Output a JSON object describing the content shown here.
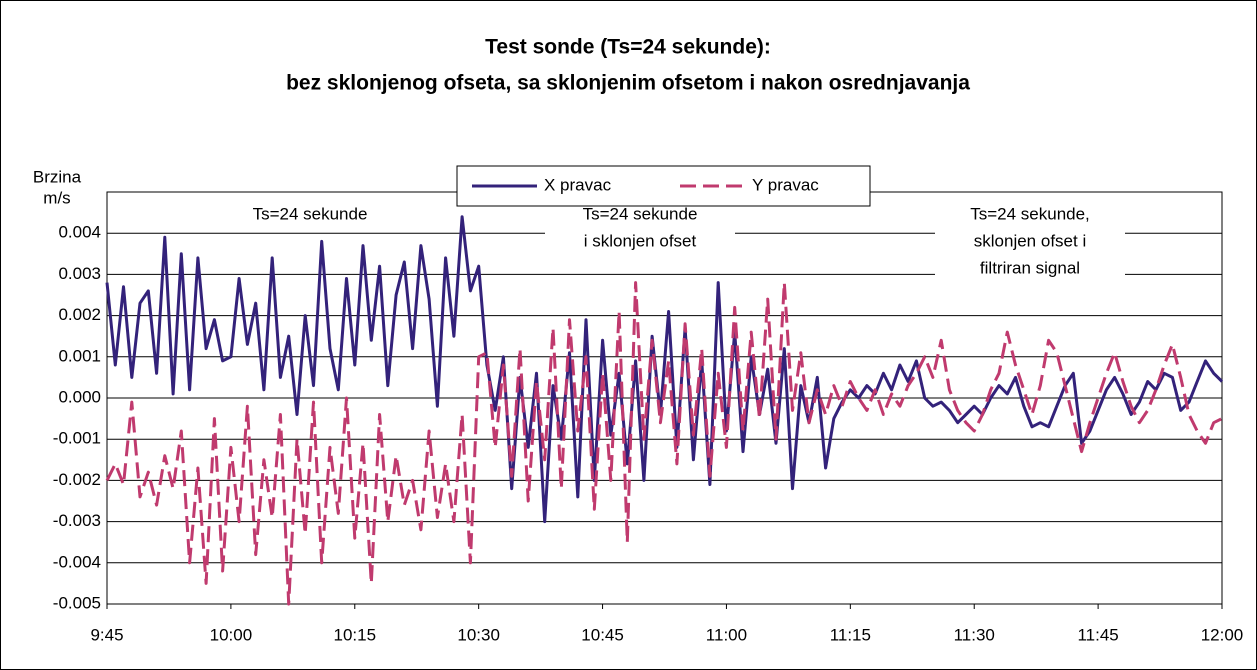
{
  "chart_data": {
    "type": "line",
    "title": [
      "Test sonde (Ts=24 sekunde):",
      "bez sklonjenog ofseta, sa sklonjenim ofsetom i nakon osrednjavanja"
    ],
    "y_label": [
      "Brzina",
      "m/s"
    ],
    "annotations": [
      [
        "Ts=24 sekunde"
      ],
      [
        "Ts=24 sekunde",
        "i sklonjen ofset"
      ],
      [
        "Ts=24 sekunde,",
        "sklonjen ofset i",
        "filtriran signal"
      ]
    ],
    "legend": "top",
    "grid": true,
    "xlim": [
      585,
      720
    ],
    "xticks": [
      {
        "value": 585,
        "label": "9:45"
      },
      {
        "value": 600,
        "label": "10:00"
      },
      {
        "value": 615,
        "label": "10:15"
      },
      {
        "value": 630,
        "label": "10:30"
      },
      {
        "value": 645,
        "label": "10:45"
      },
      {
        "value": 660,
        "label": "11:00"
      },
      {
        "value": 675,
        "label": "11:15"
      },
      {
        "value": 690,
        "label": "11:30"
      },
      {
        "value": 705,
        "label": "11:45"
      },
      {
        "value": 720,
        "label": "12:00"
      }
    ],
    "ylim": [
      -0.005,
      0.005
    ],
    "yticks": [
      {
        "value": -0.005,
        "label": "-0.005"
      },
      {
        "value": -0.004,
        "label": "-0.004"
      },
      {
        "value": -0.003,
        "label": "-0.003"
      },
      {
        "value": -0.002,
        "label": "-0.002"
      },
      {
        "value": -0.001,
        "label": "-0.001"
      },
      {
        "value": 0,
        "label": "0.000"
      },
      {
        "value": 0.001,
        "label": "0.001"
      },
      {
        "value": 0.002,
        "label": "0.002"
      },
      {
        "value": 0.003,
        "label": "0.003"
      },
      {
        "value": 0.004,
        "label": "0.004"
      }
    ],
    "x": [
      585,
      586,
      587,
      588,
      589,
      590,
      591,
      592,
      593,
      594,
      595,
      596,
      597,
      598,
      599,
      600,
      601,
      602,
      603,
      604,
      605,
      606,
      607,
      608,
      609,
      610,
      611,
      612,
      613,
      614,
      615,
      616,
      617,
      618,
      619,
      620,
      621,
      622,
      623,
      624,
      625,
      626,
      627,
      628,
      629,
      630,
      631,
      632,
      633,
      634,
      635,
      636,
      637,
      638,
      639,
      640,
      641,
      642,
      643,
      644,
      645,
      646,
      647,
      648,
      649,
      650,
      651,
      652,
      653,
      654,
      655,
      656,
      657,
      658,
      659,
      660,
      661,
      662,
      663,
      664,
      665,
      666,
      667,
      668,
      669,
      670,
      671,
      672,
      673,
      674,
      675,
      676,
      677,
      678,
      679,
      680,
      681,
      682,
      683,
      684,
      685,
      686,
      687,
      688,
      689,
      690,
      691,
      692,
      693,
      694,
      695,
      696,
      697,
      698,
      699,
      700,
      701,
      702,
      703,
      704,
      705,
      706,
      707,
      708,
      709,
      710,
      711,
      712,
      713,
      714,
      715,
      716,
      717,
      718,
      719,
      720
    ],
    "series": [
      {
        "name": "X pravac",
        "color": "#33227a",
        "dashed": false,
        "values": [
          0.0028,
          0.0008,
          0.0027,
          0.0005,
          0.0023,
          0.0026,
          0.0006,
          0.0039,
          0.0001,
          0.0035,
          0.0002,
          0.0034,
          0.0012,
          0.0019,
          0.0009,
          0.001,
          0.0029,
          0.0013,
          0.0023,
          0.0002,
          0.0034,
          0.0005,
          0.0015,
          -0.0004,
          0.002,
          0.0003,
          0.0038,
          0.0012,
          0.0002,
          0.0029,
          0.0008,
          0.0037,
          0.0014,
          0.0032,
          0.0003,
          0.0025,
          0.0033,
          0.0012,
          0.0037,
          0.0024,
          -0.0002,
          0.0034,
          0.0015,
          0.0044,
          0.0026,
          0.0032,
          0.0008,
          -0.0003,
          0.001,
          -0.0022,
          0.0005,
          -0.0012,
          0.0006,
          -0.003,
          0.0003,
          -0.001,
          0.0011,
          -0.0024,
          0.0019,
          -0.002,
          0.0014,
          -0.0009,
          0.0006,
          -0.0016,
          0.0009,
          -0.002,
          0.0015,
          -0.0004,
          0.0021,
          -0.0012,
          0.0017,
          -0.0015,
          0.0009,
          -0.0021,
          0.0028,
          -0.0008,
          0.0016,
          -0.0013,
          0.001,
          -0.0004,
          0.0007,
          -0.0011,
          0.0012,
          -0.0022,
          0.0003,
          -0.0006,
          0.0005,
          -0.0017,
          -0.0005,
          -0.0001,
          0.0002,
          0.0,
          0.0003,
          0.0001,
          0.0006,
          0.0002,
          0.0008,
          0.0004,
          0.0009,
          0.0,
          -0.0002,
          -0.0001,
          -0.0003,
          -0.0006,
          -0.0004,
          -0.0002,
          -0.0004,
          0.0,
          0.0003,
          0.0001,
          0.0005,
          -0.0002,
          -0.0007,
          -0.0006,
          -0.0007,
          -0.0002,
          0.0003,
          0.0006,
          -0.0011,
          -0.0008,
          -0.0003,
          0.0002,
          0.0005,
          0.0001,
          -0.0004,
          -0.0001,
          0.0004,
          0.0002,
          0.0006,
          0.0005,
          -0.0003,
          -0.0001,
          0.0004,
          0.0009,
          0.0006,
          0.0004
        ]
      },
      {
        "name": "Y pravac",
        "color": "#c03a6e",
        "dashed": true,
        "values": [
          -0.002,
          -0.0016,
          -0.0021,
          -0.0001,
          -0.0024,
          -0.0018,
          -0.0026,
          -0.0014,
          -0.0022,
          -0.0008,
          -0.004,
          -0.0017,
          -0.0045,
          -0.0005,
          -0.0042,
          -0.0012,
          -0.003,
          -0.0002,
          -0.0038,
          -0.0015,
          -0.0029,
          -0.0004,
          -0.005,
          -0.001,
          -0.0033,
          -0.0001,
          -0.004,
          -0.0012,
          -0.0028,
          0.0,
          -0.0034,
          -0.0011,
          -0.0045,
          -0.0004,
          -0.003,
          -0.0014,
          -0.0026,
          -0.002,
          -0.0032,
          -0.0008,
          -0.0029,
          -0.0016,
          -0.003,
          -0.0004,
          -0.004,
          0.001,
          0.0011,
          -0.0012,
          0.0008,
          -0.0019,
          0.0012,
          -0.0025,
          0.0004,
          -0.0015,
          0.0017,
          -0.0022,
          0.0019,
          -0.0008,
          0.001,
          -0.0027,
          0.0006,
          -0.002,
          0.0021,
          -0.0035,
          0.0028,
          -0.001,
          0.0014,
          -0.0006,
          0.0009,
          -0.0016,
          0.0018,
          -0.0009,
          0.0012,
          -0.0019,
          0.0006,
          -0.0012,
          0.0022,
          -0.0008,
          0.0016,
          -0.0005,
          0.0024,
          -0.001,
          0.0028,
          -0.0003,
          0.0011,
          -0.0006,
          0.0002,
          -0.0004,
          0.0003,
          -0.0002,
          0.0004,
          0.0,
          -0.0003,
          0.0002,
          -0.0004,
          0.0001,
          -0.0002,
          0.0003,
          0.0006,
          0.001,
          0.0005,
          0.0014,
          0.0002,
          -0.0003,
          -0.0006,
          -0.0008,
          -0.0004,
          0.0002,
          0.0006,
          0.0016,
          0.0008,
          0.0002,
          -0.0004,
          0.0003,
          0.0014,
          0.0011,
          0.0003,
          -0.0005,
          -0.0013,
          -0.0006,
          0.0,
          0.0006,
          0.0011,
          0.0004,
          -0.0002,
          -0.0006,
          -0.0003,
          0.0002,
          0.0008,
          0.0013,
          0.0005,
          -0.0004,
          -0.0008,
          -0.0011,
          -0.0006,
          -0.0005
        ]
      }
    ]
  }
}
